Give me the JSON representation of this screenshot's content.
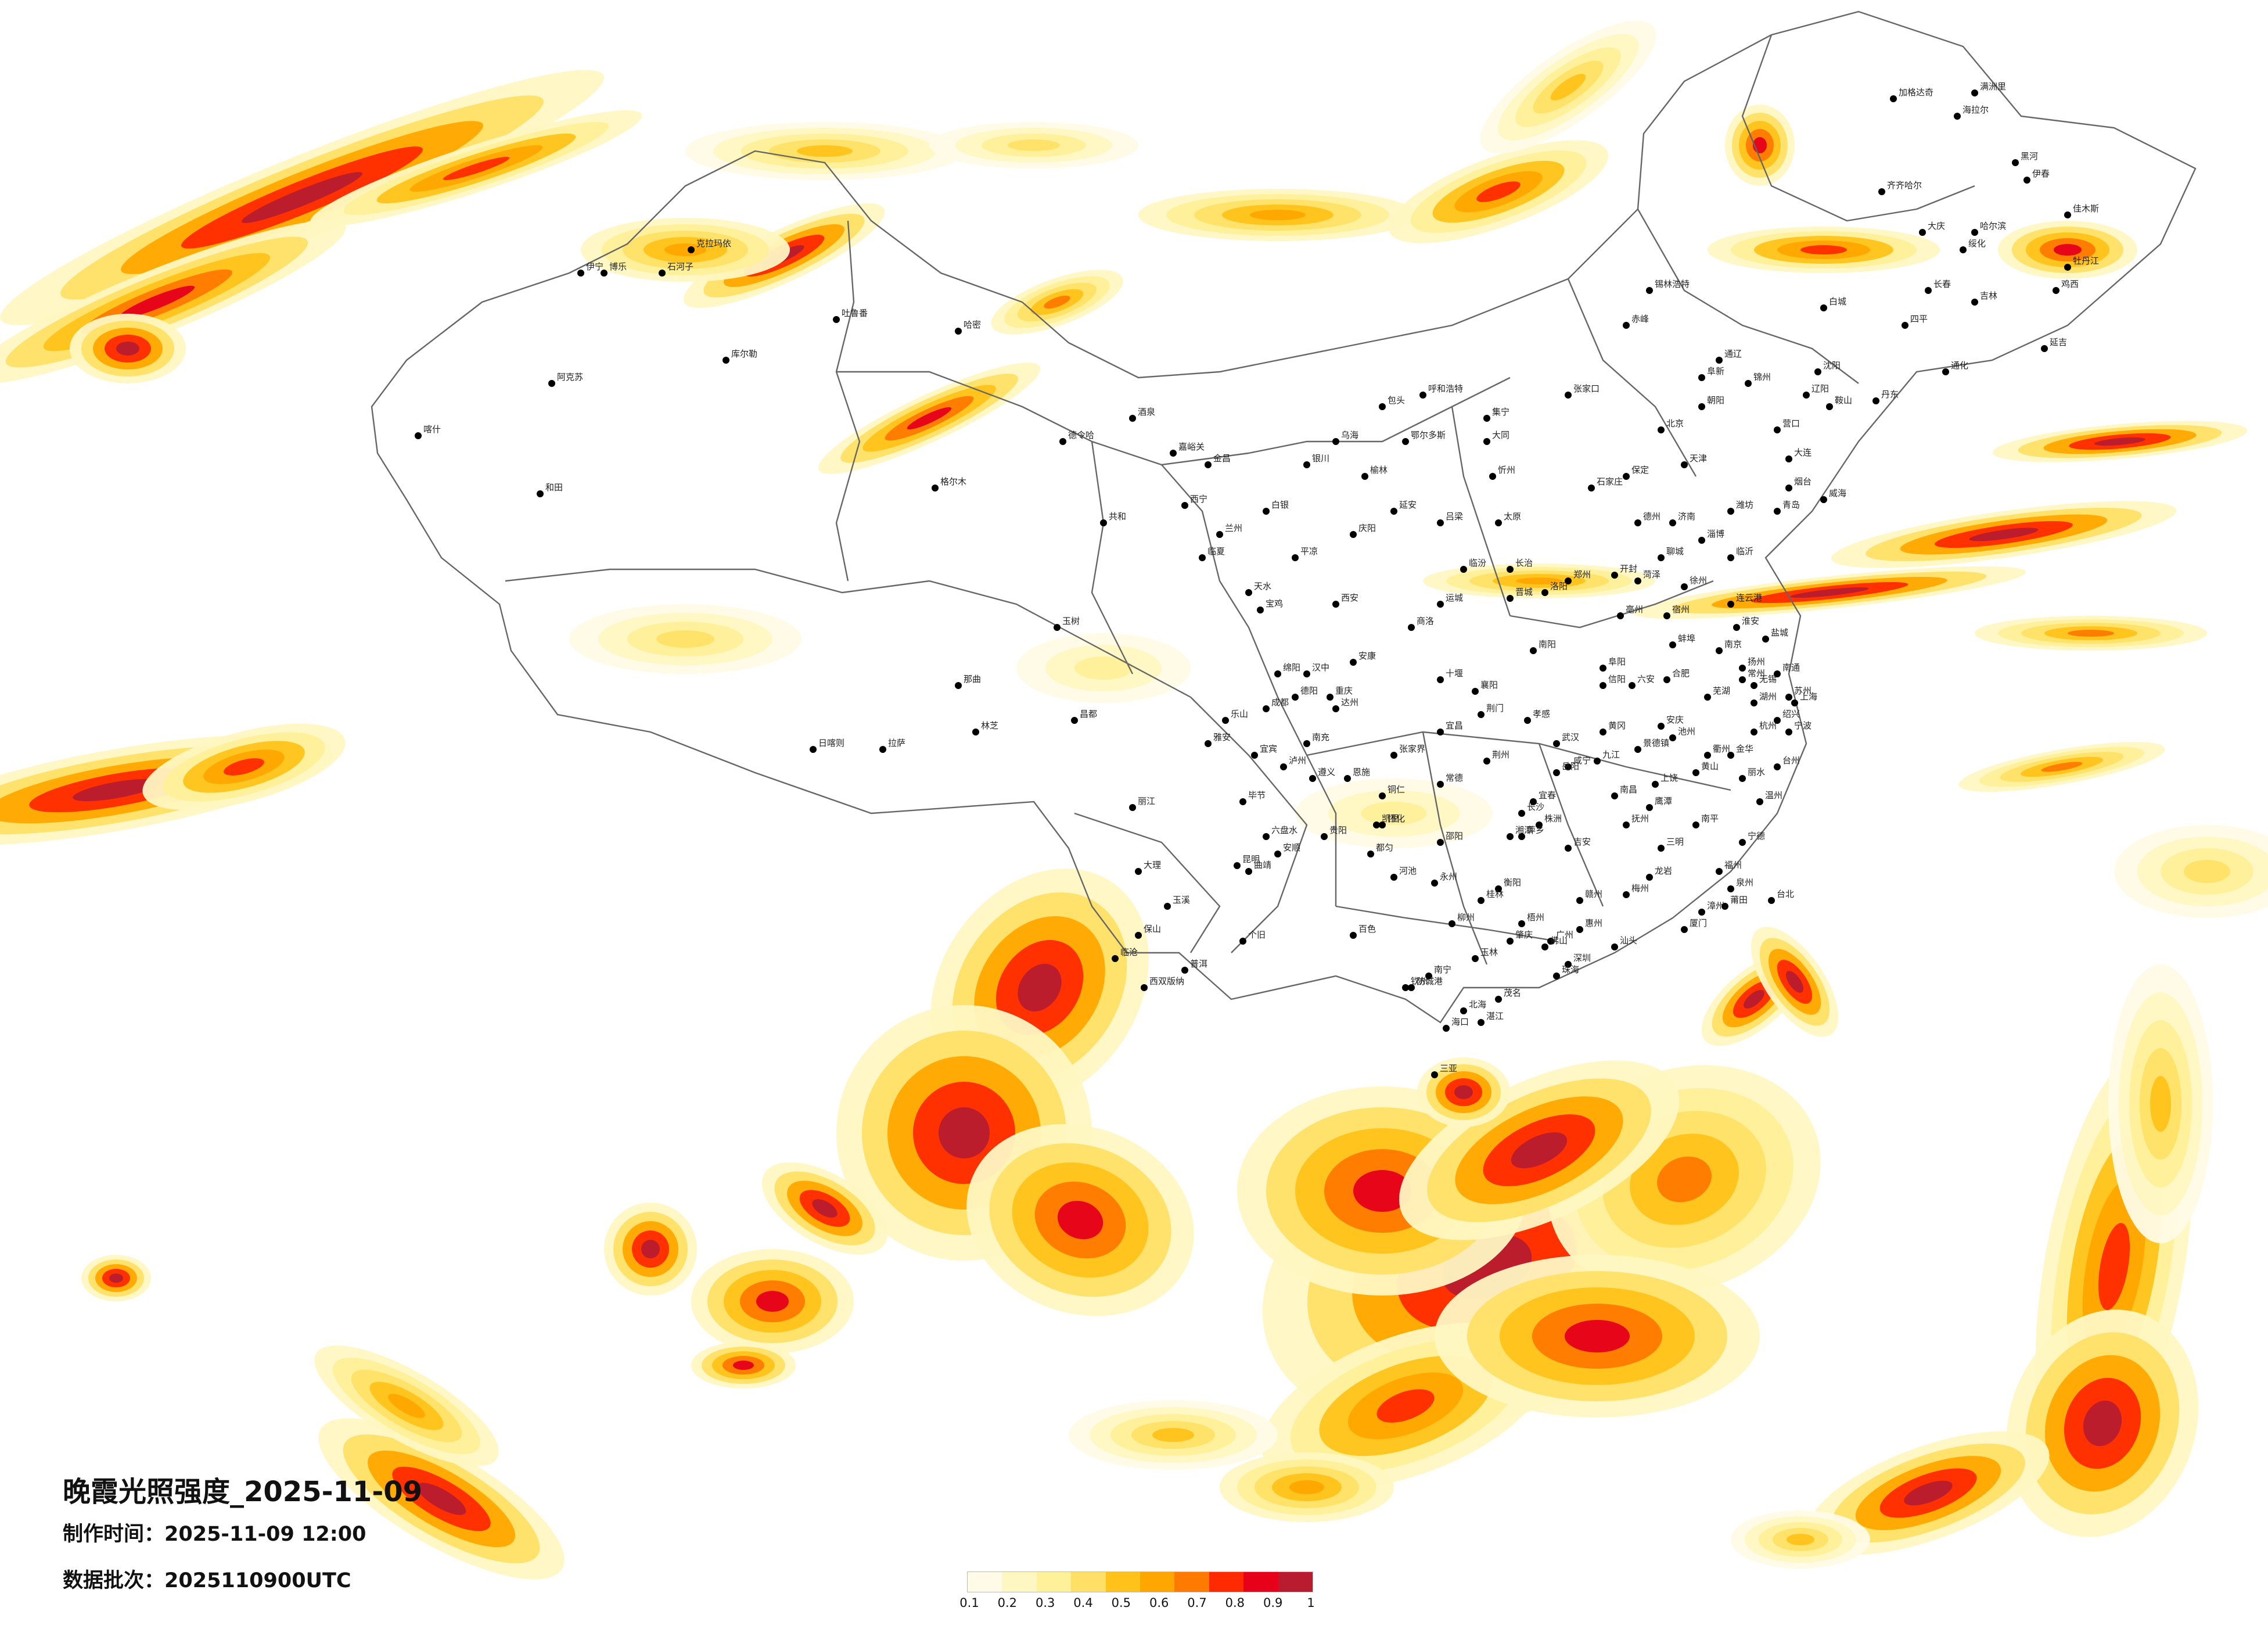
{
  "title": "晚霞光照强度_2025-11-09",
  "made_label": "制作时间：",
  "made_value": "2025-11-09 12:00",
  "batch_label": "数据批次：",
  "batch_value": "2025110900UTC",
  "legend": {
    "ticks": [
      "0.1",
      "0.2",
      "0.3",
      "0.4",
      "0.5",
      "0.6",
      "0.7",
      "0.8",
      "0.9",
      "1"
    ],
    "colors": [
      "#fffbe6",
      "#fff7c2",
      "#fff09a",
      "#ffe066",
      "#ffc21a",
      "#ffa600",
      "#ff7a00",
      "#ff2a00",
      "#e6001a",
      "#b81c2e"
    ]
  },
  "map": {
    "type": "heatmap",
    "value_name": "晚霞光照强度",
    "value_range": [
      0.1,
      1
    ],
    "colors": {
      "border": "#666666",
      "city_dot": "#000000",
      "label": "#222222"
    }
  },
  "cities": [
    "伊宁",
    "克拉玛依",
    "阿克苏",
    "喀什",
    "和田",
    "库尔勒",
    "吐鲁番",
    "哈密",
    "博乐",
    "石河子",
    "格尔木",
    "德令哈",
    "共和",
    "西宁",
    "玉树",
    "那曲",
    "拉萨",
    "日喀则",
    "林芝",
    "昌都",
    "嘉峪关",
    "酒泉",
    "金昌",
    "银川",
    "兰州",
    "天水",
    "平凉",
    "庆阳",
    "白银",
    "临夏",
    "呼和浩特",
    "包头",
    "鄂尔多斯",
    "乌海",
    "集宁",
    "张家口",
    "北京",
    "天津",
    "石家庄",
    "保定",
    "太原",
    "大同",
    "忻州",
    "吕梁",
    "长治",
    "晋城",
    "临汾",
    "运城",
    "西安",
    "宝鸡",
    "延安",
    "榆林",
    "汉中",
    "安康",
    "商洛",
    "郑州",
    "开封",
    "洛阳",
    "南阳",
    "信阳",
    "济南",
    "青岛",
    "烟台",
    "威海",
    "潍坊",
    "淄博",
    "临沂",
    "聊城",
    "菏泽",
    "德州",
    "南京",
    "徐州",
    "连云港",
    "盐城",
    "扬州",
    "苏州",
    "无锡",
    "常州",
    "南通",
    "淮安",
    "上海",
    "杭州",
    "宁波",
    "温州",
    "绍兴",
    "金华",
    "衢州",
    "台州",
    "丽水",
    "湖州",
    "合肥",
    "阜阳",
    "蚌埠",
    "芜湖",
    "安庆",
    "黄山",
    "六安",
    "亳州",
    "宿州",
    "池州",
    "武汉",
    "宜昌",
    "襄阳",
    "荆门",
    "荆州",
    "十堰",
    "恩施",
    "黄冈",
    "孝感",
    "咸宁",
    "长沙",
    "株洲",
    "湘潭",
    "衡阳",
    "岳阳",
    "常德",
    "张家界",
    "怀化",
    "邵阳",
    "永州",
    "南昌",
    "九江",
    "赣州",
    "吉安",
    "上饶",
    "抚州",
    "宜春",
    "景德镇",
    "萍乡",
    "鹰潭",
    "福州",
    "厦门",
    "泉州",
    "漳州",
    "莆田",
    "龙岩",
    "三明",
    "南平",
    "宁德",
    "台北",
    "广州",
    "深圳",
    "珠海",
    "汕头",
    "佛山",
    "湛江",
    "茂名",
    "肇庆",
    "惠州",
    "梅州",
    "南宁",
    "桂林",
    "柳州",
    "梧州",
    "玉林",
    "百色",
    "河池",
    "钦州",
    "北海",
    "防城港",
    "海口",
    "三亚",
    "贵阳",
    "遵义",
    "六盘水",
    "安顺",
    "毕节",
    "铜仁",
    "都匀",
    "凯里",
    "昆明",
    "曲靖",
    "玉溪",
    "大理",
    "丽江",
    "保山",
    "普洱",
    "西双版纳",
    "临沧",
    "个旧",
    "成都",
    "重庆",
    "绵阳",
    "德阳",
    "南充",
    "宜宾",
    "泸州",
    "乐山",
    "雅安",
    "达州",
    "哈尔滨",
    "齐齐哈尔",
    "牡丹江",
    "佳木斯",
    "大庆",
    "鸡西",
    "伊春",
    "绥化",
    "黑河",
    "加格达奇",
    "长春",
    "吉林",
    "四平",
    "通化",
    "延吉",
    "白城",
    "沈阳",
    "大连",
    "鞍山",
    "丹东",
    "锦州",
    "营口",
    "阜新",
    "辽阳",
    "朝阳",
    "赤峰",
    "通辽",
    "锡林浩特",
    "海拉尔",
    "满洲里"
  ]
}
